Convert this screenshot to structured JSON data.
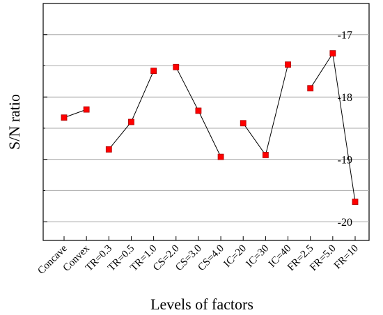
{
  "chart_data": {
    "type": "line",
    "xlabel": "Levels of factors",
    "ylabel": "S/N ratio",
    "categories": [
      "Concave",
      "Convex",
      "TR=0.3",
      "TR=0.5",
      "TR=1.0",
      "CS=2.0",
      "CS=3.0",
      "CS=4.0",
      "IC=20",
      "IC=30",
      "IC=40",
      "FR=2.5",
      "FR=5.0",
      "FR=10"
    ],
    "series": [
      {
        "color": "#ff0000",
        "values": [
          -18.33,
          -18.2,
          null,
          null,
          null,
          null,
          null,
          null,
          null,
          null,
          null,
          null,
          null,
          null
        ]
      },
      {
        "color": "#ff0000",
        "values": [
          null,
          null,
          -18.84,
          -18.4,
          -17.58,
          null,
          null,
          null,
          null,
          null,
          null,
          null,
          null,
          null
        ]
      },
      {
        "color": "#ff0000",
        "values": [
          null,
          null,
          null,
          null,
          null,
          -17.52,
          -18.22,
          -18.96,
          null,
          null,
          null,
          null,
          null,
          null
        ]
      },
      {
        "color": "#ff0000",
        "values": [
          null,
          null,
          null,
          null,
          null,
          null,
          null,
          null,
          -18.42,
          -18.93,
          -17.48,
          null,
          null,
          null
        ]
      },
      {
        "color": "#ff0000",
        "values": [
          null,
          null,
          null,
          null,
          null,
          null,
          null,
          null,
          null,
          null,
          null,
          -17.86,
          -17.3,
          -19.68
        ]
      }
    ],
    "ylim": [
      -20.3,
      -16.5
    ],
    "yticks": [
      -20,
      -19,
      -18,
      -17
    ],
    "yminorticks": [
      -19.5,
      -18.5,
      -17.5
    ],
    "grid": true
  }
}
